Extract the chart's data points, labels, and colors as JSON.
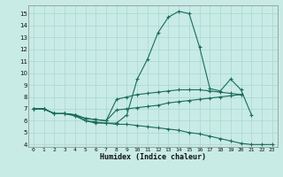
{
  "title": "",
  "xlabel": "Humidex (Indice chaleur)",
  "ylabel": "",
  "bg_color": "#c8ebe5",
  "grid_color": "#a8d8d0",
  "line_color": "#1a6b5a",
  "xlim": [
    -0.5,
    23.5
  ],
  "ylim": [
    3.8,
    15.7
  ],
  "xticks": [
    0,
    1,
    2,
    3,
    4,
    5,
    6,
    7,
    8,
    9,
    10,
    11,
    12,
    13,
    14,
    15,
    16,
    17,
    18,
    19,
    20,
    21,
    22,
    23
  ],
  "yticks": [
    4,
    5,
    6,
    7,
    8,
    9,
    10,
    11,
    12,
    13,
    14,
    15
  ],
  "line1_x": [
    0,
    1,
    2,
    3,
    4,
    5,
    6,
    7,
    8,
    9,
    10,
    11,
    12,
    13,
    14,
    15,
    16,
    17,
    18,
    19,
    20,
    21
  ],
  "line1_y": [
    7.0,
    7.0,
    6.6,
    6.6,
    6.5,
    6.0,
    5.9,
    5.8,
    5.8,
    6.5,
    9.5,
    11.2,
    13.4,
    14.7,
    15.2,
    15.0,
    12.2,
    8.7,
    8.5,
    9.5,
    8.6,
    6.5
  ],
  "line2_x": [
    0,
    1,
    2,
    3,
    4,
    5,
    6,
    7,
    8,
    9,
    10,
    11,
    12,
    13,
    14,
    15,
    16,
    17,
    18,
    19,
    20
  ],
  "line2_y": [
    7.0,
    7.0,
    6.6,
    6.6,
    6.5,
    6.2,
    6.1,
    6.0,
    7.8,
    8.0,
    8.2,
    8.3,
    8.4,
    8.5,
    8.6,
    8.6,
    8.6,
    8.5,
    8.4,
    8.3,
    8.2
  ],
  "line3_x": [
    0,
    1,
    2,
    3,
    4,
    5,
    6,
    7,
    8,
    9,
    10,
    11,
    12,
    13,
    14,
    15,
    16,
    17,
    18,
    19,
    20
  ],
  "line3_y": [
    7.0,
    7.0,
    6.6,
    6.6,
    6.5,
    6.2,
    6.1,
    6.0,
    6.9,
    7.0,
    7.1,
    7.2,
    7.3,
    7.5,
    7.6,
    7.7,
    7.8,
    7.9,
    8.0,
    8.1,
    8.2
  ],
  "line4_x": [
    0,
    1,
    2,
    3,
    4,
    5,
    6,
    7,
    8,
    9,
    10,
    11,
    12,
    13,
    14,
    15,
    16,
    17,
    18,
    19,
    20,
    21,
    22,
    23
  ],
  "line4_y": [
    7.0,
    7.0,
    6.6,
    6.6,
    6.4,
    6.0,
    5.8,
    5.8,
    5.7,
    5.7,
    5.6,
    5.5,
    5.4,
    5.3,
    5.2,
    5.0,
    4.9,
    4.7,
    4.5,
    4.3,
    4.1,
    4.0,
    4.0,
    4.0
  ]
}
